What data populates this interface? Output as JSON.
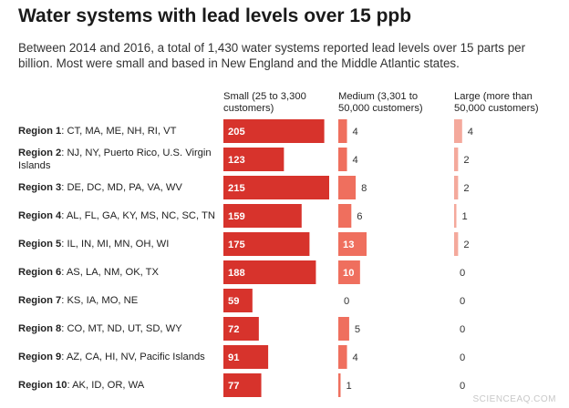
{
  "title": "Water systems with lead levels over 15 ppb",
  "subtitle": "Between 2014 and 2016, a total of 1,430 water systems reported lead levels over 15 parts per billion. Most were small and based in New England and the Middle Atlantic states.",
  "watermark": "SCIENCEAQ.COM",
  "colors": {
    "small": "#d7332c",
    "medium": "#ef6f5e",
    "large": "#f4a99c"
  },
  "chart_data": {
    "type": "bar",
    "columns": [
      {
        "key": "small",
        "header_line1": "Small (25 to 3,300",
        "header_line2": "customers)"
      },
      {
        "key": "medium",
        "header_line1": "Medium (3,301 to",
        "header_line2": "50,000 customers)"
      },
      {
        "key": "large",
        "header_line1": "Large (more than",
        "header_line2": "50,000 customers)"
      }
    ],
    "rows": [
      {
        "region": "Region 1",
        "states": "CT, MA, ME, NH, RI, VT",
        "small": 205,
        "medium": 4,
        "large": 4
      },
      {
        "region": "Region 2",
        "states": "NJ, NY, Puerto Rico, U.S. Virgin Islands",
        "small": 123,
        "medium": 4,
        "large": 2
      },
      {
        "region": "Region 3",
        "states": "DE, DC, MD, PA, VA, WV",
        "small": 215,
        "medium": 8,
        "large": 2
      },
      {
        "region": "Region 4",
        "states": "AL, FL, GA, KY, MS, NC, SC, TN",
        "small": 159,
        "medium": 6,
        "large": 1
      },
      {
        "region": "Region 5",
        "states": "IL, IN, MI, MN, OH, WI",
        "small": 175,
        "medium": 13,
        "large": 2
      },
      {
        "region": "Region 6",
        "states": "AS, LA, NM, OK, TX",
        "small": 188,
        "medium": 10,
        "large": 0
      },
      {
        "region": "Region 7",
        "states": "KS, IA, MO, NE",
        "small": 59,
        "medium": 0,
        "large": 0
      },
      {
        "region": "Region 8",
        "states": "CO, MT, ND, UT, SD, WY",
        "small": 72,
        "medium": 5,
        "large": 0
      },
      {
        "region": "Region 9",
        "states": "AZ, CA, HI, NV, Pacific Islands",
        "small": 91,
        "medium": 4,
        "large": 0
      },
      {
        "region": "Region 10",
        "states": "AK, ID, OR, WA",
        "small": 77,
        "medium": 1,
        "large": 0
      }
    ]
  }
}
